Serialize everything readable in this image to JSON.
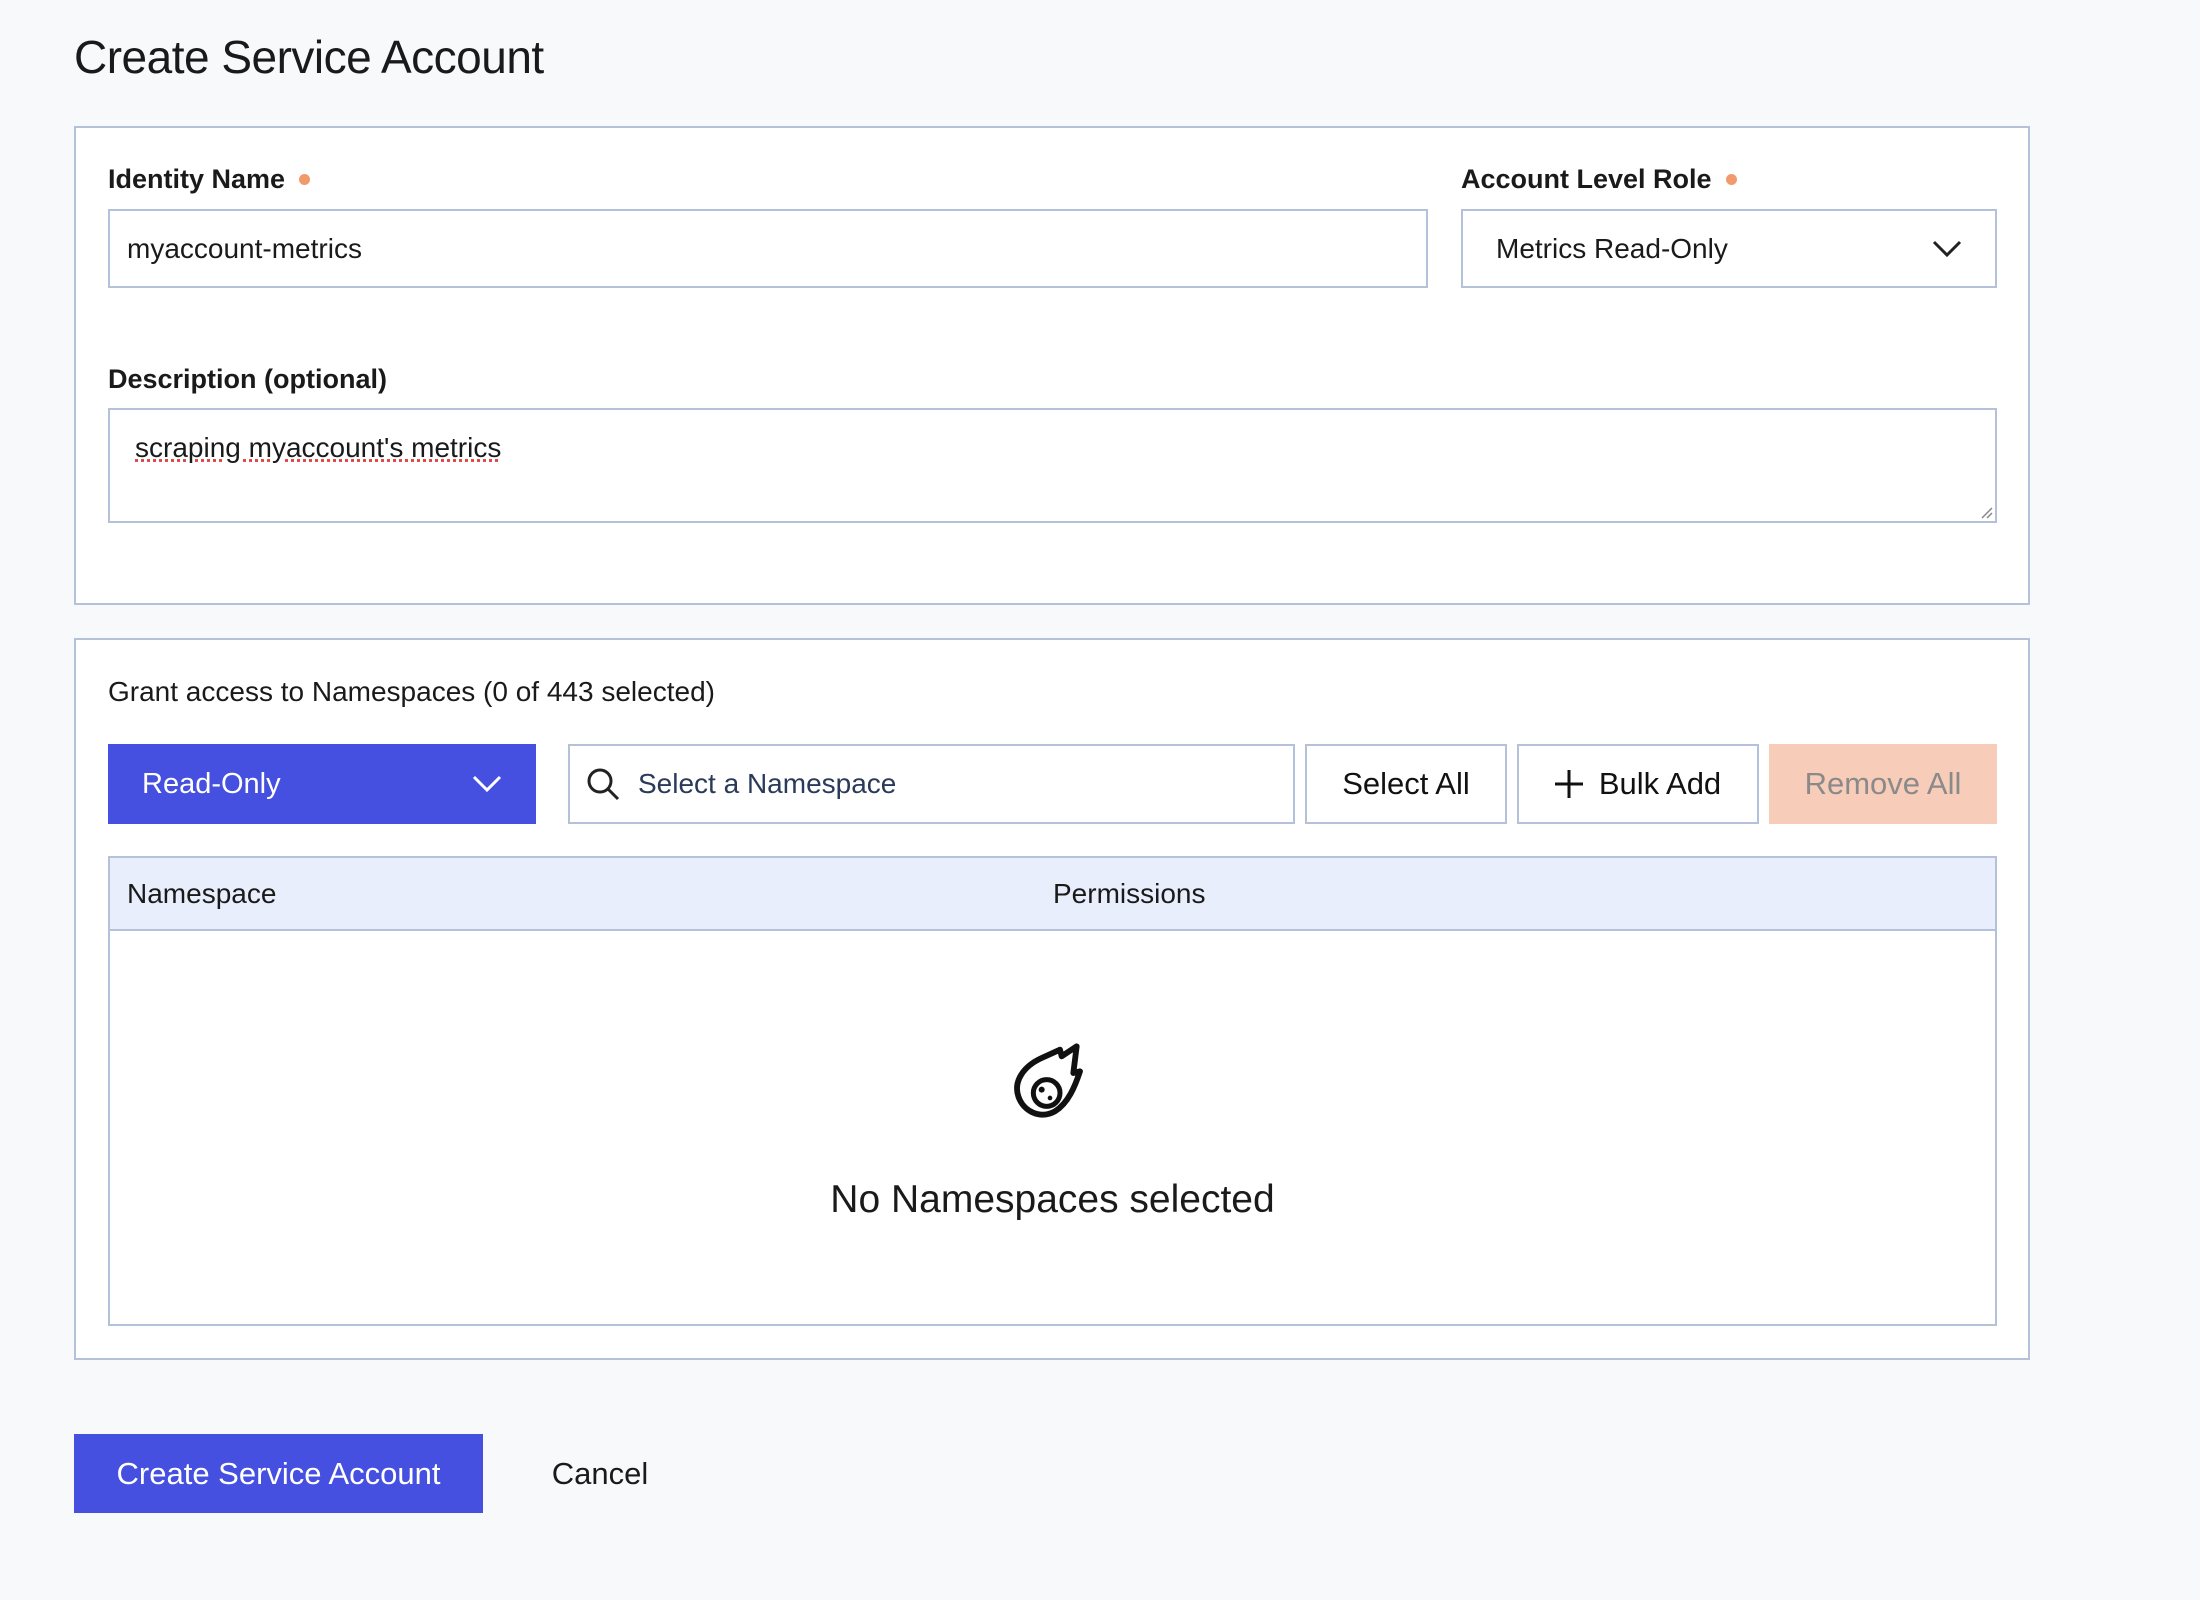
{
  "page": {
    "title": "Create Service Account"
  },
  "identity": {
    "label": "Identity Name",
    "value": "myaccount-metrics"
  },
  "role": {
    "label": "Account Level Role",
    "value": "Metrics Read-Only"
  },
  "description": {
    "label": "Description (optional)",
    "value": "scraping myaccount's metrics"
  },
  "namespaces": {
    "title": "Grant access to Namespaces (0 of 443 selected)",
    "permission_select": "Read-Only",
    "search_placeholder": "Select a Namespace",
    "select_all": "Select All",
    "bulk_add": "Bulk Add",
    "remove_all": "Remove All",
    "columns": [
      "Namespace",
      "Permissions"
    ],
    "empty_icon": "comet-icon",
    "empty_text": "No Namespaces selected"
  },
  "footer": {
    "create": "Create Service Account",
    "cancel": "Cancel"
  },
  "colors": {
    "primary": "#4650e0",
    "required": "#f19a6c",
    "disabled": "#f7cdb9",
    "border": "#b5c1d9",
    "table_header": "#e8eefc"
  }
}
